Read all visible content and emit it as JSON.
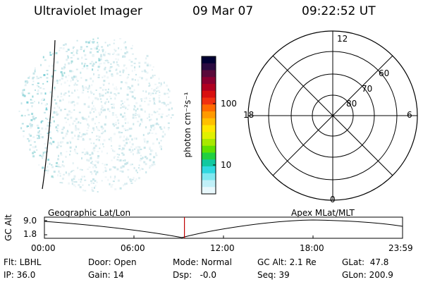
{
  "header": {
    "instrument": "Ultraviolet Imager",
    "date": "09 Mar 07",
    "time": "09:22:52 UT"
  },
  "colorbar": {
    "label": "photon cm⁻²s⁻¹",
    "ticks": [
      "100",
      "10"
    ],
    "colors": [
      "#000033",
      "#2a0a40",
      "#5a0a3a",
      "#8a0030",
      "#b00020",
      "#d81010",
      "#f03010",
      "#ff6a00",
      "#ff9a00",
      "#ffc000",
      "#ffe600",
      "#e0f000",
      "#a8e800",
      "#60e000",
      "#20d040",
      "#10c8a0",
      "#30d8e0",
      "#80e8f0",
      "#c0f0f8",
      "#e8f8fc"
    ]
  },
  "polar": {
    "mlt_labels": {
      "top": "12",
      "bottom": "0",
      "left": "18",
      "right": "6"
    },
    "lat_labels": [
      "60",
      "70",
      "80"
    ]
  },
  "timeline": {
    "y_axis_title": "GC Alt",
    "y_ticks": [
      "9.0",
      "1.8"
    ],
    "left_caption": "Geographic Lat/Lon",
    "right_caption": "Apex MLat/MLT",
    "x_ticks": [
      "00:00",
      "06:00",
      "12:00",
      "18:00",
      "23:59"
    ],
    "current_time_fraction": 0.391,
    "marker_color": "#c00000"
  },
  "info": {
    "flt": "Flt: LBHL",
    "ip": "IP: 36.0",
    "door": "Door: Open",
    "gain": "Gain: 14",
    "mode": "Mode: Normal",
    "dsp": "Dsp:   -0.0",
    "gc_alt": "GC Alt: 2.1 Re",
    "seq": "Seq: 39",
    "glat": "GLat:  47.8",
    "glon": "GLon: 200.9"
  }
}
